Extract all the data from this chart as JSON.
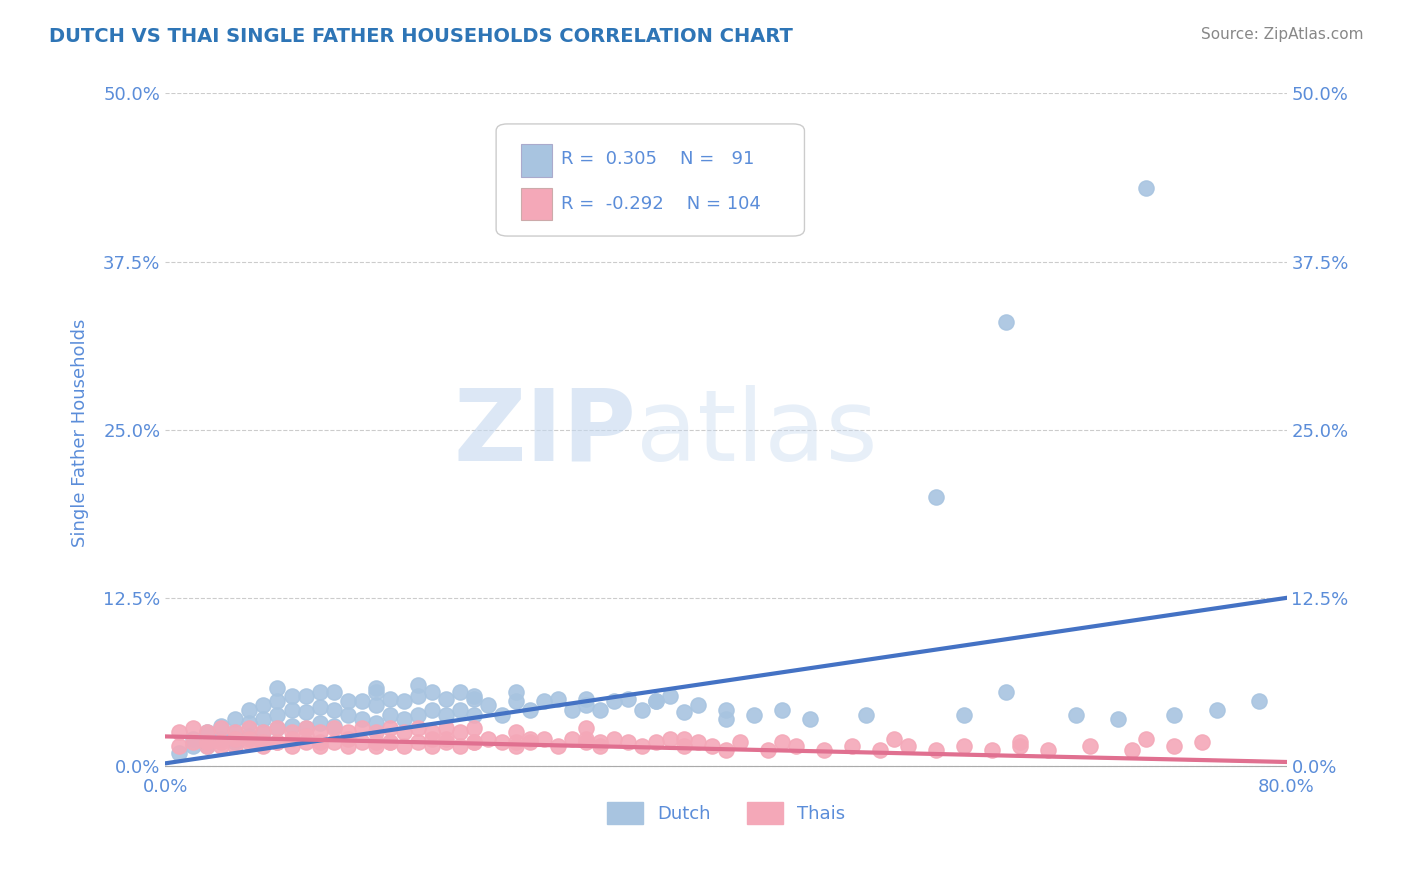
{
  "title": "DUTCH VS THAI SINGLE FATHER HOUSEHOLDS CORRELATION CHART",
  "source": "Source: ZipAtlas.com",
  "ylabel": "Single Father Households",
  "xlim": [
    0.0,
    0.8
  ],
  "ylim": [
    -0.005,
    0.5
  ],
  "yticks": [
    0.0,
    0.125,
    0.25,
    0.375,
    0.5
  ],
  "ytick_labels": [
    "0.0%",
    "12.5%",
    "25.0%",
    "37.5%",
    "50.0%"
  ],
  "xticks": [
    0.0,
    0.8
  ],
  "xtick_labels": [
    "0.0%",
    "80.0%"
  ],
  "dutch_R": 0.305,
  "dutch_N": 91,
  "thai_R": -0.292,
  "thai_N": 104,
  "dutch_color": "#a8c4e0",
  "thai_color": "#f4a8b8",
  "dutch_line_color": "#4472c4",
  "thai_line_color": "#e07090",
  "title_color": "#2e75b6",
  "axis_color": "#5b8dd9",
  "label_color": "#2e75b6",
  "background_color": "#ffffff",
  "watermark_zip": "ZIP",
  "watermark_atlas": "atlas",
  "dutch_trend_x0": 0.0,
  "dutch_trend_y0": 0.002,
  "dutch_trend_x1": 0.8,
  "dutch_trend_y1": 0.125,
  "thai_trend_x0": 0.0,
  "thai_trend_y0": 0.022,
  "thai_trend_x1": 0.8,
  "thai_trend_y1": 0.003,
  "dutch_scatter_x": [
    0.01,
    0.02,
    0.02,
    0.03,
    0.03,
    0.04,
    0.04,
    0.05,
    0.05,
    0.05,
    0.06,
    0.06,
    0.06,
    0.07,
    0.07,
    0.07,
    0.08,
    0.08,
    0.08,
    0.08,
    0.09,
    0.09,
    0.09,
    0.1,
    0.1,
    0.1,
    0.11,
    0.11,
    0.11,
    0.12,
    0.12,
    0.12,
    0.13,
    0.13,
    0.14,
    0.14,
    0.15,
    0.15,
    0.15,
    0.16,
    0.16,
    0.17,
    0.17,
    0.18,
    0.18,
    0.19,
    0.19,
    0.2,
    0.2,
    0.21,
    0.21,
    0.22,
    0.22,
    0.23,
    0.24,
    0.25,
    0.26,
    0.27,
    0.28,
    0.29,
    0.3,
    0.31,
    0.32,
    0.33,
    0.34,
    0.35,
    0.36,
    0.37,
    0.38,
    0.4,
    0.42,
    0.44,
    0.46,
    0.5,
    0.55,
    0.57,
    0.6,
    0.65,
    0.68,
    0.7,
    0.72,
    0.75,
    0.78,
    0.6,
    0.4,
    0.35,
    0.3,
    0.25,
    0.22,
    0.18,
    0.15
  ],
  "dutch_scatter_y": [
    0.01,
    0.015,
    0.02,
    0.015,
    0.025,
    0.02,
    0.03,
    0.018,
    0.025,
    0.035,
    0.022,
    0.032,
    0.042,
    0.025,
    0.035,
    0.045,
    0.028,
    0.038,
    0.048,
    0.058,
    0.03,
    0.042,
    0.052,
    0.028,
    0.04,
    0.052,
    0.032,
    0.044,
    0.055,
    0.03,
    0.042,
    0.055,
    0.038,
    0.048,
    0.035,
    0.048,
    0.032,
    0.045,
    0.058,
    0.038,
    0.05,
    0.035,
    0.048,
    0.038,
    0.052,
    0.042,
    0.055,
    0.038,
    0.05,
    0.042,
    0.055,
    0.038,
    0.05,
    0.045,
    0.038,
    0.048,
    0.042,
    0.048,
    0.05,
    0.042,
    0.045,
    0.042,
    0.048,
    0.05,
    0.042,
    0.048,
    0.052,
    0.04,
    0.045,
    0.042,
    0.038,
    0.042,
    0.035,
    0.038,
    0.2,
    0.038,
    0.055,
    0.038,
    0.035,
    0.43,
    0.038,
    0.042,
    0.048,
    0.33,
    0.035,
    0.048,
    0.05,
    0.055,
    0.052,
    0.06,
    0.055
  ],
  "thai_scatter_x": [
    0.01,
    0.01,
    0.02,
    0.02,
    0.03,
    0.03,
    0.04,
    0.04,
    0.05,
    0.05,
    0.06,
    0.06,
    0.07,
    0.07,
    0.08,
    0.08,
    0.09,
    0.09,
    0.1,
    0.1,
    0.11,
    0.11,
    0.12,
    0.12,
    0.13,
    0.13,
    0.14,
    0.14,
    0.15,
    0.15,
    0.16,
    0.16,
    0.17,
    0.17,
    0.18,
    0.18,
    0.19,
    0.19,
    0.2,
    0.2,
    0.21,
    0.21,
    0.22,
    0.22,
    0.23,
    0.24,
    0.25,
    0.25,
    0.26,
    0.27,
    0.28,
    0.29,
    0.3,
    0.3,
    0.31,
    0.32,
    0.33,
    0.34,
    0.35,
    0.36,
    0.37,
    0.38,
    0.39,
    0.4,
    0.41,
    0.43,
    0.45,
    0.47,
    0.49,
    0.51,
    0.53,
    0.55,
    0.57,
    0.59,
    0.61,
    0.63,
    0.66,
    0.69,
    0.72,
    0.3,
    0.25,
    0.2,
    0.15,
    0.1,
    0.07,
    0.05,
    0.03,
    0.04,
    0.06,
    0.08,
    0.09,
    0.11,
    0.13,
    0.16,
    0.19,
    0.22,
    0.26,
    0.31,
    0.37,
    0.44,
    0.52,
    0.61,
    0.7,
    0.74
  ],
  "thai_scatter_y": [
    0.015,
    0.025,
    0.018,
    0.028,
    0.015,
    0.025,
    0.018,
    0.028,
    0.015,
    0.025,
    0.018,
    0.028,
    0.015,
    0.025,
    0.018,
    0.028,
    0.015,
    0.025,
    0.018,
    0.028,
    0.015,
    0.025,
    0.018,
    0.028,
    0.015,
    0.025,
    0.018,
    0.028,
    0.015,
    0.025,
    0.018,
    0.028,
    0.015,
    0.025,
    0.018,
    0.028,
    0.015,
    0.025,
    0.018,
    0.028,
    0.015,
    0.025,
    0.018,
    0.028,
    0.02,
    0.018,
    0.015,
    0.025,
    0.018,
    0.02,
    0.015,
    0.02,
    0.018,
    0.028,
    0.015,
    0.02,
    0.018,
    0.015,
    0.018,
    0.02,
    0.015,
    0.018,
    0.015,
    0.012,
    0.018,
    0.012,
    0.015,
    0.012,
    0.015,
    0.012,
    0.015,
    0.012,
    0.015,
    0.012,
    0.015,
    0.012,
    0.015,
    0.012,
    0.015,
    0.02,
    0.018,
    0.02,
    0.018,
    0.022,
    0.018,
    0.02,
    0.018,
    0.015,
    0.02,
    0.018,
    0.02,
    0.018,
    0.02,
    0.018,
    0.02,
    0.018,
    0.02,
    0.018,
    0.02,
    0.018,
    0.02,
    0.018,
    0.02,
    0.018
  ]
}
